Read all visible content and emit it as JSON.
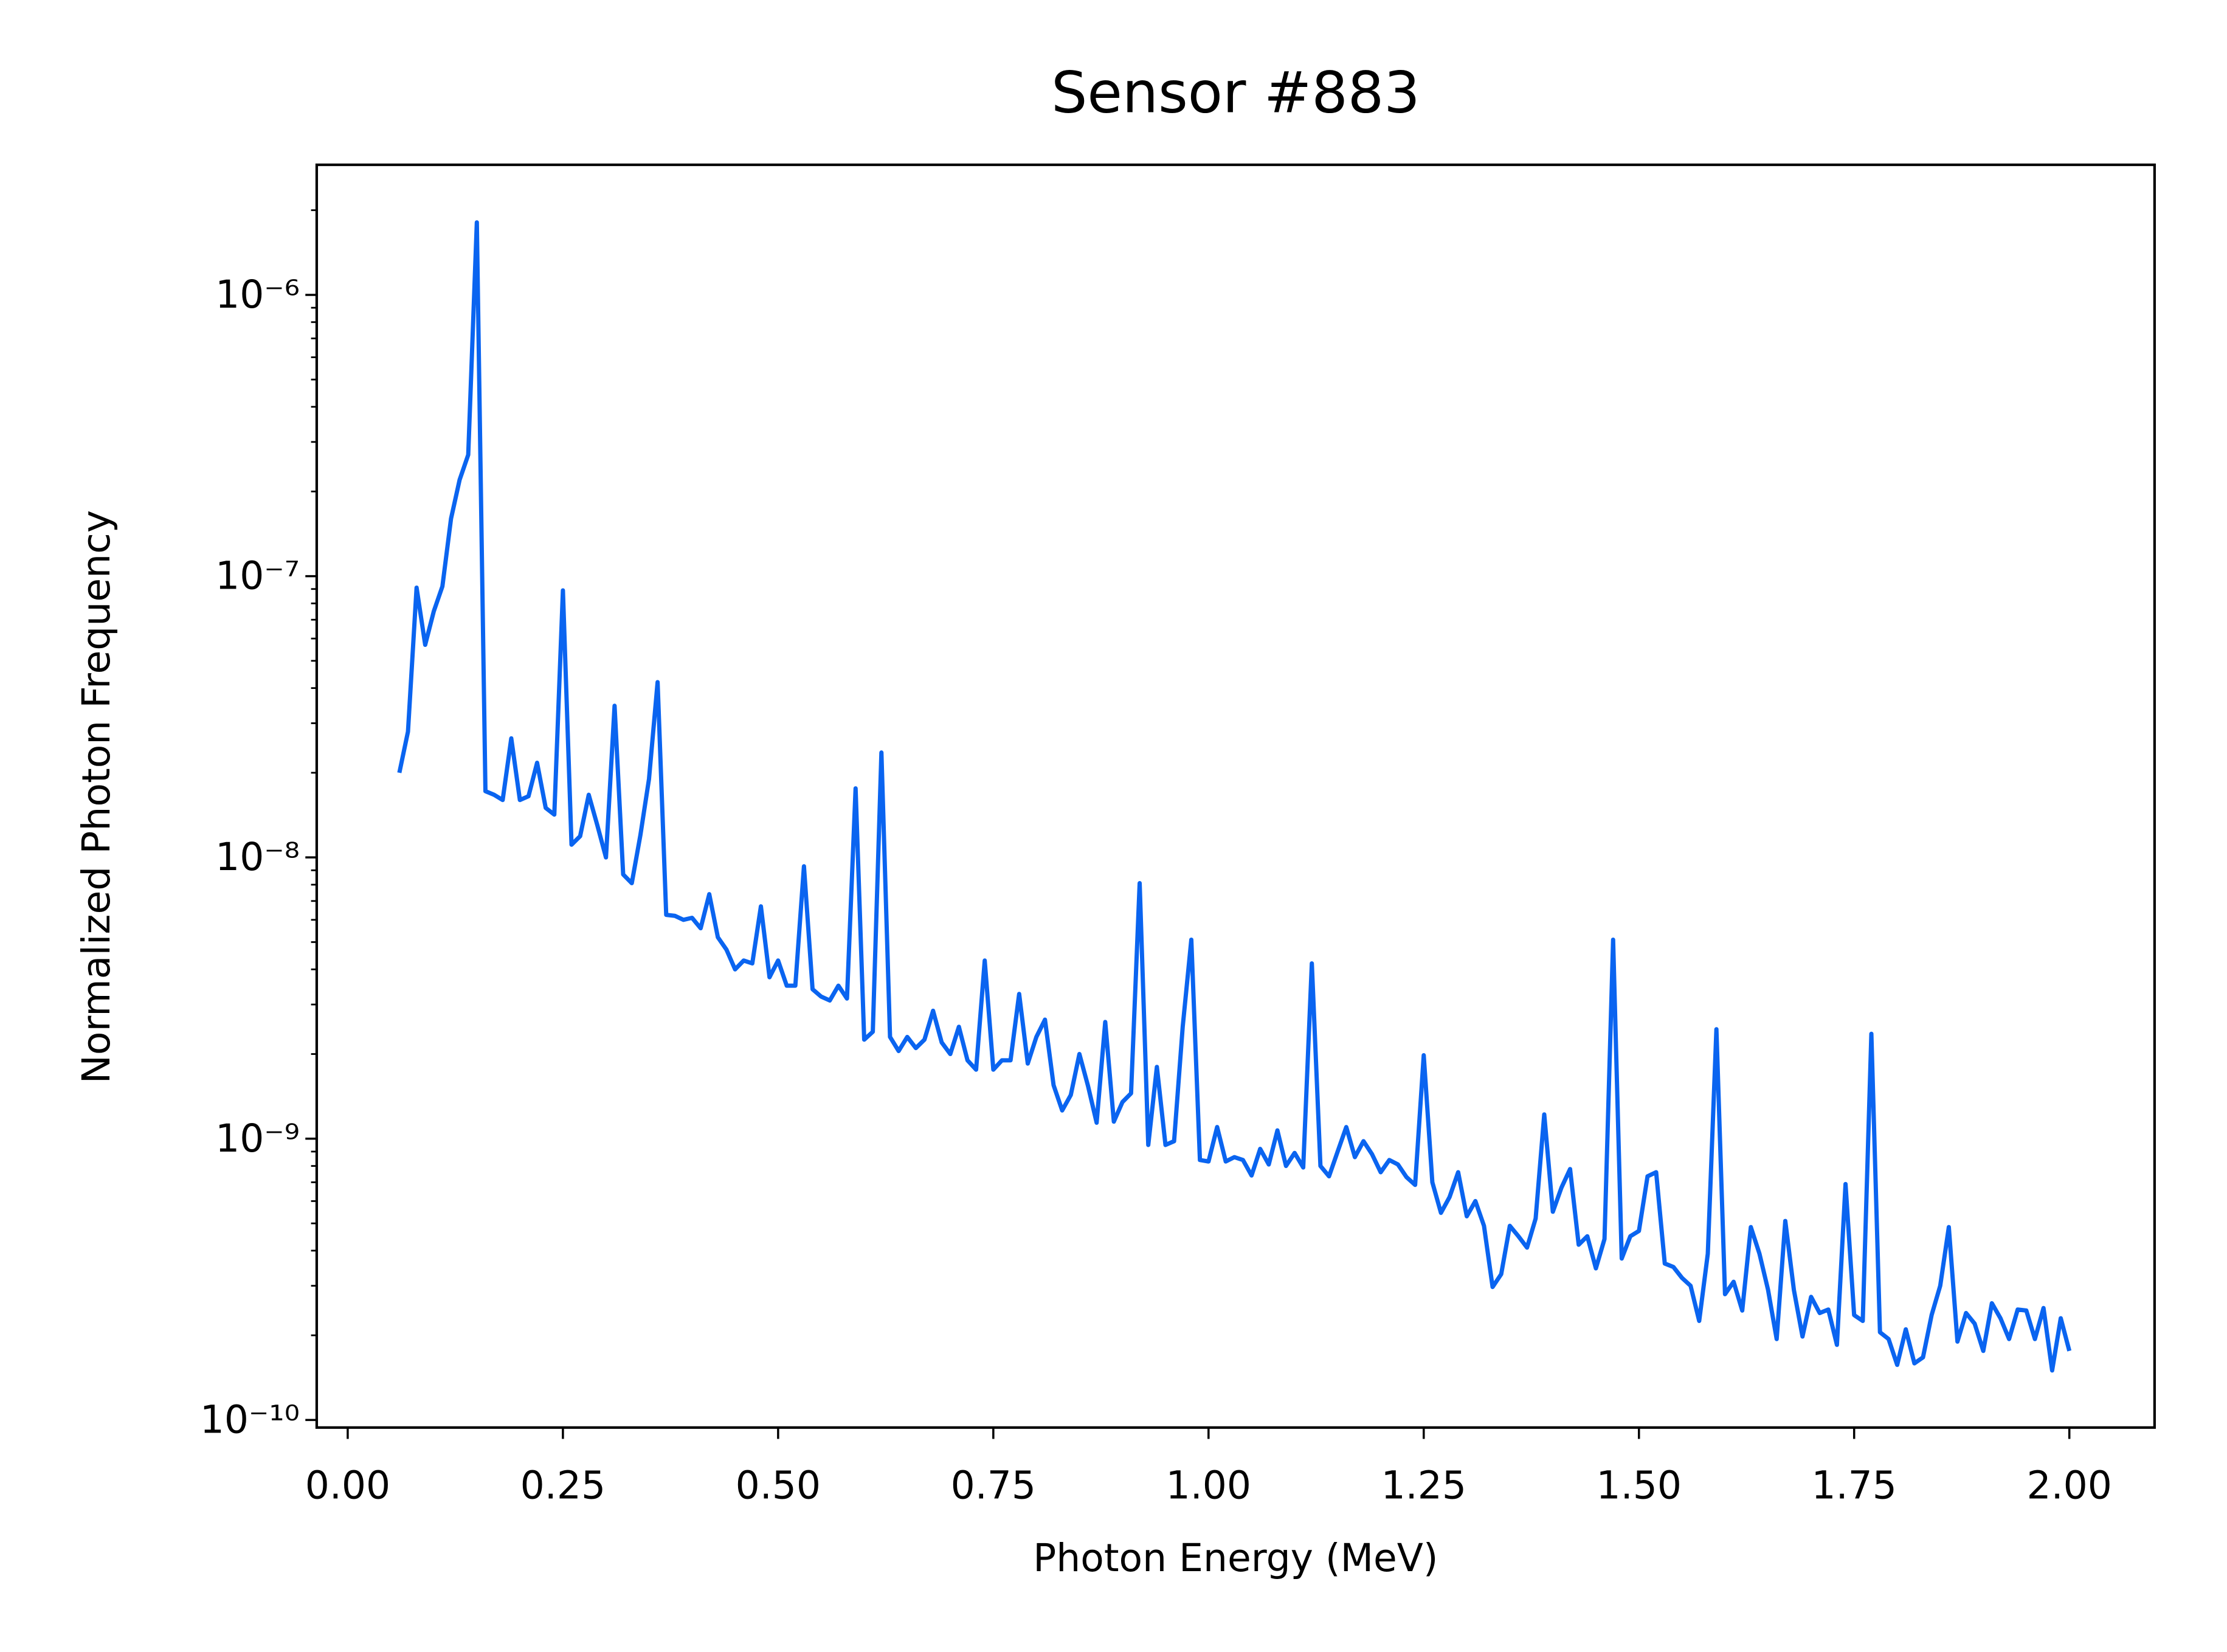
{
  "chart_data": {
    "type": "line",
    "title": "Sensor #883",
    "xlabel": "Photon Energy (MeV)",
    "ylabel": "Normalized Photon Frequency",
    "color": "#0a64f0",
    "log_y": true,
    "xlim": [
      -0.036,
      2.099
    ],
    "ylim": [
      9.4e-11,
      2.9e-06
    ],
    "xticks": [
      {
        "value": 0,
        "label": "0.00"
      },
      0.25,
      {
        "value": 0.5,
        "label": "0.50"
      },
      0.75,
      {
        "value": 1,
        "label": "1.00"
      },
      1.25,
      {
        "value": 1.5,
        "label": "1.50"
      },
      1.75,
      {
        "value": 2,
        "label": "2.00"
      }
    ],
    "yticks": [
      {
        "value": 1e-10,
        "label": "10⁻¹⁰"
      },
      {
        "value": 1e-09,
        "label": "10⁻⁹"
      },
      {
        "value": 1e-08,
        "label": "10⁻⁸"
      },
      {
        "value": 1e-07,
        "label": "10⁻⁷"
      },
      {
        "value": 1e-06,
        "label": "10⁻⁶"
      }
    ],
    "x": [
      0.06,
      0.07,
      0.08,
      0.09,
      0.1,
      0.11,
      0.12,
      0.13,
      0.14,
      0.15,
      0.16,
      0.17,
      0.18,
      0.19,
      0.2,
      0.21,
      0.22,
      0.23,
      0.24,
      0.25,
      0.26,
      0.27,
      0.28,
      0.29,
      0.3,
      0.31,
      0.32,
      0.33,
      0.34,
      0.35,
      0.36,
      0.37,
      0.38,
      0.39,
      0.4,
      0.41,
      0.42,
      0.43,
      0.44,
      0.45,
      0.46,
      0.47,
      0.48,
      0.49,
      0.5,
      0.51,
      0.52,
      0.53,
      0.54,
      0.55,
      0.56,
      0.57,
      0.58,
      0.59,
      0.6,
      0.61,
      0.62,
      0.63,
      0.64,
      0.65,
      0.66,
      0.67,
      0.68,
      0.69,
      0.7,
      0.71,
      0.72,
      0.73,
      0.74,
      0.75,
      0.76,
      0.77,
      0.78,
      0.79,
      0.8,
      0.81,
      0.82,
      0.83,
      0.84,
      0.85,
      0.86,
      0.87,
      0.88,
      0.89,
      0.9,
      0.91,
      0.92,
      0.93,
      0.94,
      0.95,
      0.96,
      0.97,
      0.98,
      0.99,
      1.0,
      1.01,
      1.02,
      1.03,
      1.04,
      1.05,
      1.06,
      1.07,
      1.08,
      1.09,
      1.1,
      1.11,
      1.12,
      1.13,
      1.14,
      1.15,
      1.16,
      1.17,
      1.18,
      1.19,
      1.2,
      1.21,
      1.22,
      1.23,
      1.24,
      1.25,
      1.26,
      1.27,
      1.28,
      1.29,
      1.3,
      1.31,
      1.32,
      1.33,
      1.34,
      1.35,
      1.36,
      1.37,
      1.38,
      1.39,
      1.4,
      1.41,
      1.42,
      1.43,
      1.44,
      1.45,
      1.46,
      1.47,
      1.48,
      1.49,
      1.5,
      1.51,
      1.52,
      1.53,
      1.54,
      1.55,
      1.56,
      1.57,
      1.58,
      1.59,
      1.6,
      1.61,
      1.62,
      1.63,
      1.64,
      1.65,
      1.66,
      1.67,
      1.68,
      1.69,
      1.7,
      1.71,
      1.72,
      1.73,
      1.74,
      1.75,
      1.76,
      1.77,
      1.78,
      1.79,
      1.8,
      1.81,
      1.82,
      1.83,
      1.84,
      1.85,
      1.86,
      1.87,
      1.88,
      1.89,
      1.9,
      1.91,
      1.92,
      1.93,
      1.94,
      1.95,
      1.96,
      1.97,
      1.98,
      1.99,
      2.0
    ],
    "values": [
      2e-08,
      2.8e-08,
      9.1e-08,
      5.7e-08,
      7.5e-08,
      9.2e-08,
      1.6e-07,
      2.2e-07,
      2.7e-07,
      1.81e-06,
      1.72e-08,
      1.67e-08,
      1.6e-08,
      2.65e-08,
      1.6e-08,
      1.65e-08,
      2.17e-08,
      1.5e-08,
      1.42e-08,
      8.9e-08,
      1.11e-08,
      1.19e-08,
      1.67e-08,
      1.3e-08,
      1e-08,
      3.46e-08,
      8.7e-09,
      8.1e-09,
      1.2e-08,
      1.9e-08,
      4.2e-08,
      6.25e-09,
      6.2e-09,
      6e-09,
      6.1e-09,
      5.6e-09,
      7.4e-09,
      5.2e-09,
      4.7e-09,
      4e-09,
      4.3e-09,
      4.2e-09,
      6.7e-09,
      3.75e-09,
      4.3e-09,
      3.5e-09,
      3.5e-09,
      9.3e-09,
      3.4e-09,
      3.2e-09,
      3.1e-09,
      3.5e-09,
      3.15e-09,
      1.76e-08,
      2.25e-09,
      2.4e-09,
      2.36e-08,
      2.3e-09,
      2.05e-09,
      2.3e-09,
      2.1e-09,
      2.25e-09,
      2.85e-09,
      2.2e-09,
      2e-09,
      2.5e-09,
      1.9e-09,
      1.76e-09,
      4.3e-09,
      1.76e-09,
      1.9e-09,
      1.9e-09,
      3.27e-09,
      1.85e-09,
      2.3e-09,
      2.65e-09,
      1.55e-09,
      1.26e-09,
      1.43e-09,
      2e-09,
      1.54e-09,
      1.14e-09,
      2.6e-09,
      1.15e-09,
      1.35e-09,
      1.45e-09,
      8.1e-09,
      9.5e-10,
      1.8e-09,
      9.5e-10,
      9.8e-10,
      2.5e-09,
      5.1e-09,
      8.4e-10,
      8.3e-10,
      1.1e-09,
      8.3e-10,
      8.6e-10,
      8.4e-10,
      7.4e-10,
      9.2e-10,
      8.1e-10,
      1.07e-09,
      8e-10,
      8.9e-10,
      7.9e-10,
      4.2e-09,
      8e-10,
      7.35e-10,
      9e-10,
      1.1e-09,
      8.6e-10,
      9.8e-10,
      8.8e-10,
      7.6e-10,
      8.4e-10,
      8.1e-10,
      7.3e-10,
      6.85e-10,
      1.98e-09,
      7e-10,
      5.45e-10,
      6.2e-10,
      7.6e-10,
      5.3e-10,
      6e-10,
      4.9e-10,
      2.97e-10,
      3.3e-10,
      4.9e-10,
      4.5e-10,
      4.1e-10,
      5.2e-10,
      1.22e-09,
      5.5e-10,
      6.7e-10,
      7.8e-10,
      4.2e-10,
      4.5e-10,
      3.46e-10,
      4.4e-10,
      5.1e-09,
      3.75e-10,
      4.5e-10,
      4.7e-10,
      7.35e-10,
      7.6e-10,
      3.6e-10,
      3.5e-10,
      3.2e-10,
      3e-10,
      2.25e-10,
      3.9e-10,
      2.45e-09,
      2.8e-10,
      3.1e-10,
      2.45e-10,
      4.85e-10,
      3.9e-10,
      2.9e-10,
      1.94e-10,
      5.1e-10,
      2.9e-10,
      1.98e-10,
      2.74e-10,
      2.4e-10,
      2.47e-10,
      1.85e-10,
      6.9e-10,
      2.36e-10,
      2.25e-10,
      2.36e-09,
      2.05e-10,
      1.94e-10,
      1.57e-10,
      2.1e-10,
      1.59e-10,
      1.67e-10,
      2.36e-10,
      3e-10,
      4.85e-10,
      1.9e-10,
      2.4e-10,
      2.2e-10,
      1.76e-10,
      2.6e-10,
      2.3e-10,
      1.94e-10,
      2.47e-10,
      2.45e-10,
      1.94e-10,
      2.5e-10,
      1.5e-10,
      2.3e-10,
      1.76e-10
    ]
  }
}
